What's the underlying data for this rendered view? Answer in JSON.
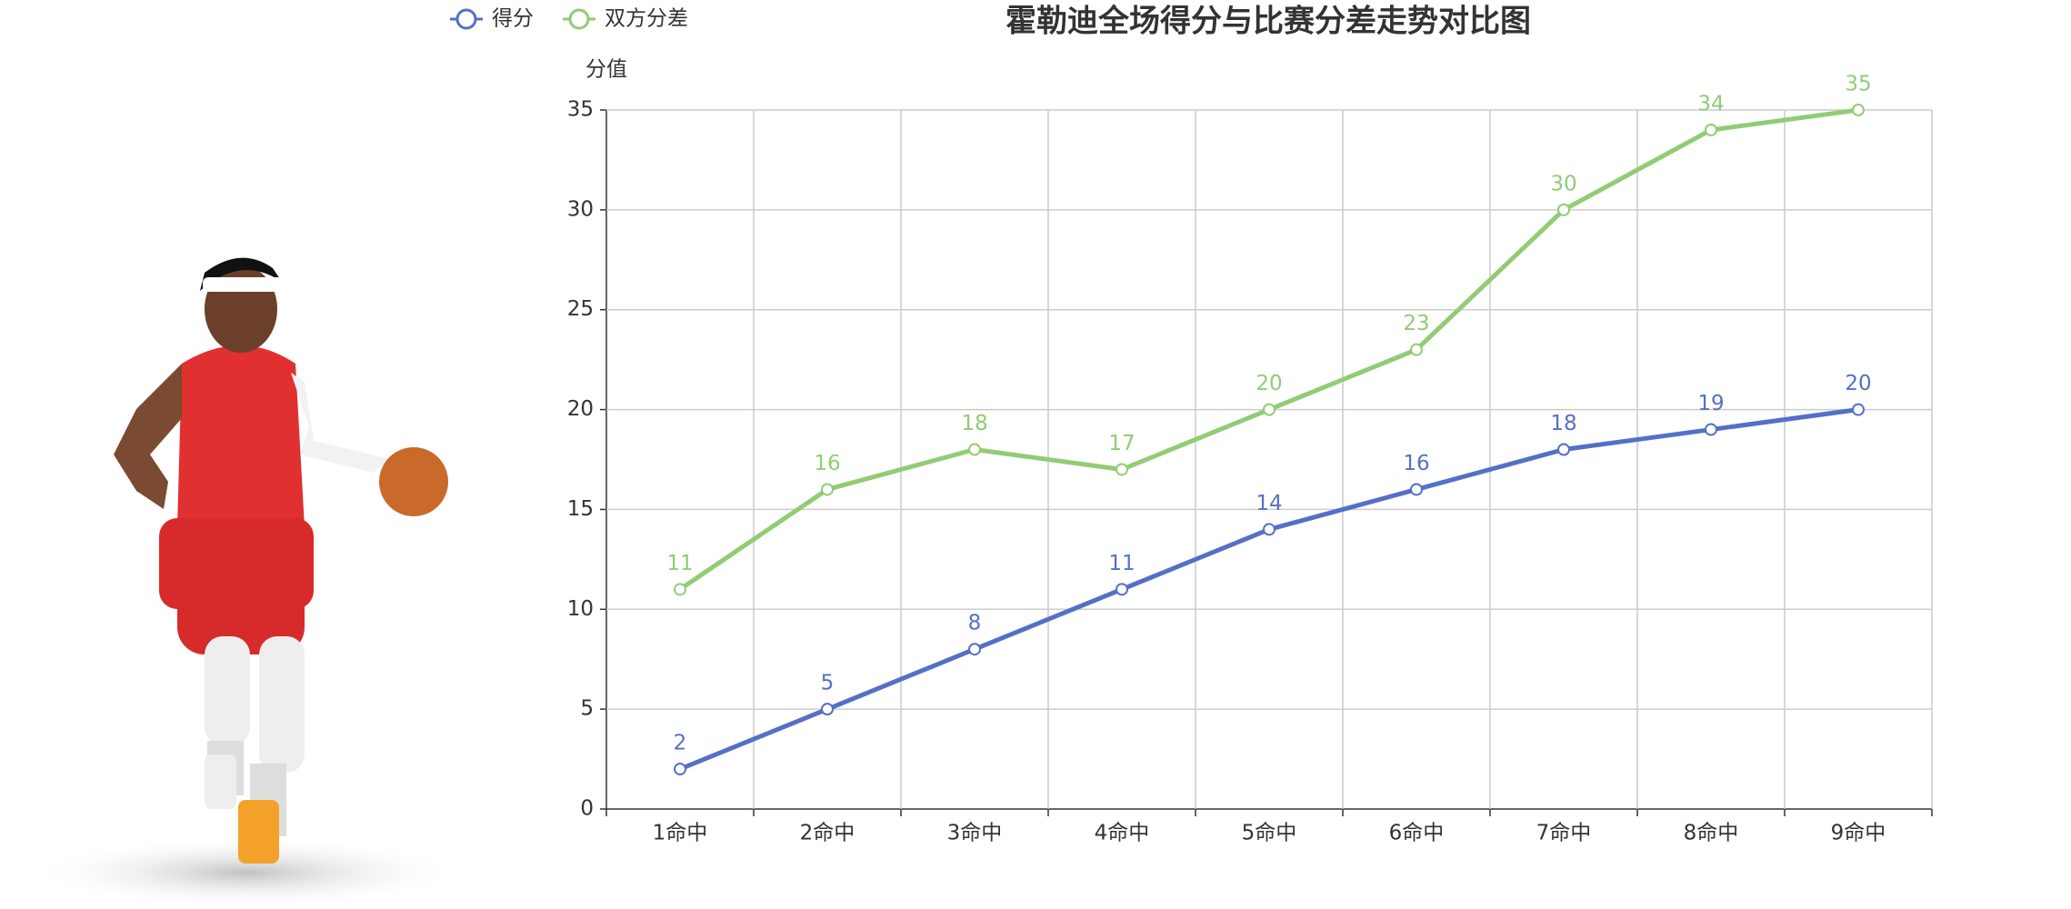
{
  "chart_data": {
    "type": "line",
    "title": "霍勒迪全场得分与比赛分差走势对比图",
    "y_label": "分值",
    "categories": [
      "1命中",
      "2命中",
      "3命中",
      "4命中",
      "5命中",
      "6命中",
      "7命中",
      "8命中",
      "9命中"
    ],
    "series": [
      {
        "name": "得分",
        "color": "#5470c6",
        "values": [
          2,
          5,
          8,
          11,
          14,
          16,
          18,
          19,
          20
        ]
      },
      {
        "name": "双方分差",
        "color": "#91cc75",
        "values": [
          11,
          16,
          18,
          17,
          20,
          23,
          30,
          34,
          35
        ]
      }
    ],
    "ylim": [
      0,
      35
    ],
    "yticks": [
      0,
      5,
      10,
      15,
      20,
      25,
      30,
      35
    ],
    "grid": true
  }
}
